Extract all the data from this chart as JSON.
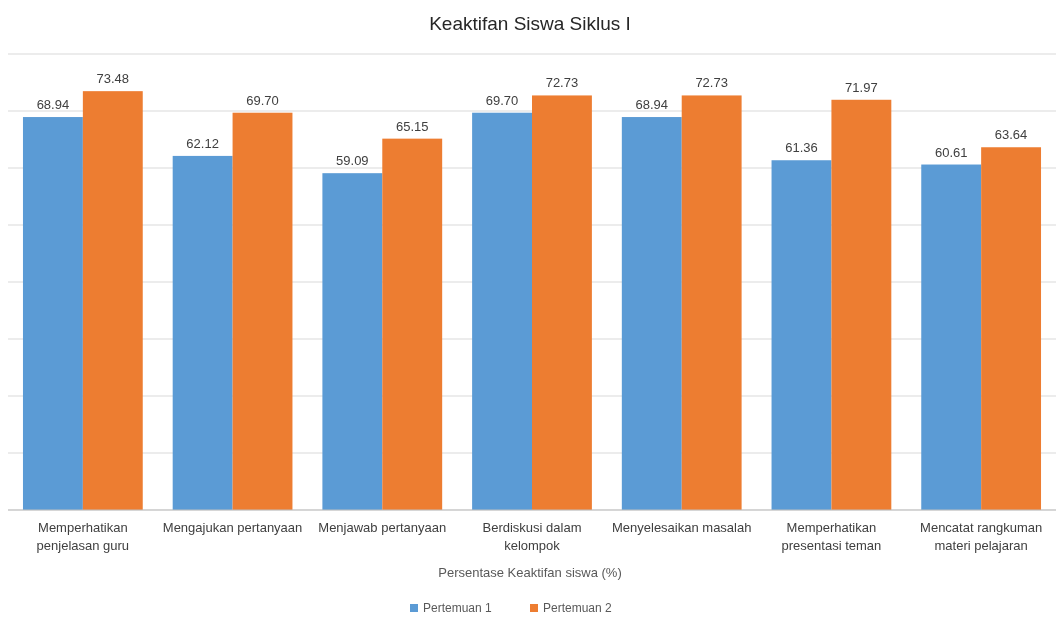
{
  "chart_data": {
    "type": "bar",
    "title": "Keaktifan Siswa Siklus I",
    "xlabel": "Persentase Keaktifan siswa (%)",
    "categories": [
      "Memperhatikan penjelasan guru",
      "Mengajukan pertanyaan",
      "Menjawab pertanyaan",
      "Berdiskusi dalam kelompok",
      "Menyelesaikan masalah",
      "Memperhatikan presentasi teman",
      "Mencatat rangkuman materi pelajaran"
    ],
    "series": [
      {
        "name": "Pertemuan 1",
        "color": "#5b9bd5",
        "values": [
          68.94,
          62.12,
          59.09,
          69.7,
          68.94,
          61.36,
          60.61
        ],
        "value_labels": [
          "68.94",
          "62.12",
          "59.09",
          "69.70",
          "68.94",
          "61.36",
          "60.61"
        ]
      },
      {
        "name": "Pertemuan 2",
        "color": "#ed7d31",
        "values": [
          73.48,
          69.7,
          65.15,
          72.73,
          72.73,
          71.97,
          63.64
        ],
        "value_labels": [
          "73.48",
          "69.70",
          "65.15",
          "72.73",
          "72.73",
          "71.97",
          "63.64"
        ]
      }
    ],
    "ylim": [
      0,
      80
    ],
    "yticks": [
      {
        "value": 0,
        "label": null
      },
      {
        "value": 10,
        "label": null
      },
      {
        "value": 20,
        "label": null
      },
      {
        "value": 30,
        "label": null
      },
      {
        "value": 40,
        "label": null
      },
      {
        "value": 50,
        "label": null
      },
      {
        "value": 60,
        "label": null
      },
      {
        "value": 70,
        "label": null
      },
      {
        "value": 80,
        "label": null
      }
    ],
    "tick_labels": "x",
    "grid": "y",
    "legend": "bottom"
  }
}
